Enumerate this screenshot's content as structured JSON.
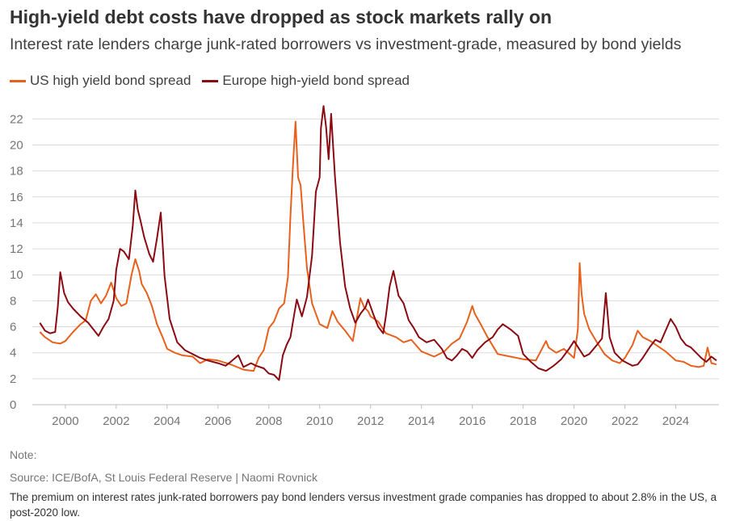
{
  "header": {
    "title": "High-yield debt costs have dropped as stock markets rally on",
    "subtitle": "Interest rate lenders charge junk-rated borrowers vs investment-grade, measured by bond yields"
  },
  "footer": {
    "note": "Note:",
    "source": "Source: ICE/BofA, St Louis Federal Reserve | Naomi Rovnick",
    "caption": "The premium on interest rates junk-rated borrowers pay bond lenders versus investment grade companies has dropped to about 2.8% in the US, a post-2020 low."
  },
  "chart_data": {
    "type": "line",
    "title": "High-yield debt costs have dropped as stock markets rally on",
    "subtitle": "Interest rate lenders charge junk-rated borrowers vs investment-grade, measured by bond yields",
    "xlabel": "",
    "ylabel": "",
    "xlim": [
      1998.7,
      2025.7
    ],
    "ylim": [
      0,
      23.2
    ],
    "x_ticks": [
      2000,
      2002,
      2004,
      2006,
      2008,
      2010,
      2012,
      2014,
      2016,
      2018,
      2020,
      2022,
      2024
    ],
    "y_ticks": [
      0,
      2,
      4,
      6,
      8,
      10,
      12,
      14,
      16,
      18,
      20,
      22
    ],
    "grid": "horizontal",
    "legend": "top-left",
    "series": [
      {
        "name": "US high yield bond spread",
        "color": "#e8601c",
        "x": [
          1999.0,
          1999.2,
          1999.5,
          1999.8,
          2000.0,
          2000.3,
          2000.6,
          2000.8,
          2001.0,
          2001.2,
          2001.4,
          2001.6,
          2001.8,
          2002.0,
          2002.2,
          2002.4,
          2002.6,
          2002.75,
          2002.9,
          2003.0,
          2003.2,
          2003.4,
          2003.6,
          2003.8,
          2004.0,
          2004.3,
          2004.6,
          2005.0,
          2005.3,
          2005.6,
          2006.0,
          2006.5,
          2007.0,
          2007.4,
          2007.6,
          2007.8,
          2008.0,
          2008.2,
          2008.4,
          2008.6,
          2008.75,
          2008.85,
          2008.95,
          2009.05,
          2009.15,
          2009.25,
          2009.35,
          2009.5,
          2009.7,
          2010.0,
          2010.3,
          2010.5,
          2010.7,
          2011.0,
          2011.3,
          2011.6,
          2011.75,
          2011.9,
          2012.0,
          2012.3,
          2012.6,
          2013.0,
          2013.3,
          2013.6,
          2014.0,
          2014.5,
          2014.9,
          2015.2,
          2015.5,
          2015.8,
          2016.0,
          2016.1,
          2016.3,
          2016.6,
          2017.0,
          2017.5,
          2018.0,
          2018.5,
          2018.9,
          2019.0,
          2019.3,
          2019.6,
          2020.0,
          2020.15,
          2020.22,
          2020.3,
          2020.4,
          2020.6,
          2020.9,
          2021.2,
          2021.5,
          2021.8,
          2022.0,
          2022.3,
          2022.5,
          2022.7,
          2023.0,
          2023.3,
          2023.6,
          2024.0,
          2024.3,
          2024.6,
          2024.9,
          2025.1,
          2025.25,
          2025.4,
          2025.6
        ],
        "values": [
          5.6,
          5.2,
          4.8,
          4.7,
          4.9,
          5.6,
          6.2,
          6.5,
          8.0,
          8.5,
          7.8,
          8.4,
          9.4,
          8.2,
          7.6,
          7.8,
          10.0,
          11.2,
          10.3,
          9.3,
          8.6,
          7.6,
          6.2,
          5.3,
          4.3,
          4.0,
          3.8,
          3.7,
          3.2,
          3.5,
          3.4,
          3.1,
          2.7,
          2.6,
          3.6,
          4.2,
          5.9,
          6.4,
          7.4,
          7.8,
          9.8,
          14.5,
          18.5,
          21.8,
          17.5,
          16.9,
          14.2,
          10.5,
          7.8,
          6.2,
          5.9,
          7.2,
          6.4,
          5.7,
          4.9,
          8.2,
          7.5,
          7.2,
          6.8,
          6.4,
          5.5,
          5.2,
          4.8,
          5.0,
          4.1,
          3.7,
          4.1,
          4.7,
          5.1,
          6.4,
          7.6,
          7.0,
          6.3,
          5.2,
          3.9,
          3.7,
          3.5,
          3.4,
          4.9,
          4.4,
          4.0,
          4.3,
          3.6,
          5.8,
          10.9,
          8.5,
          7.0,
          5.8,
          4.8,
          3.9,
          3.4,
          3.2,
          3.6,
          4.6,
          5.7,
          5.2,
          4.9,
          4.5,
          4.1,
          3.4,
          3.3,
          3.0,
          2.9,
          3.0,
          4.4,
          3.2,
          3.1
        ]
      },
      {
        "name": "Europe high-yield bond spread",
        "color": "#8b0a12",
        "x": [
          1999.0,
          1999.2,
          1999.4,
          1999.6,
          1999.7,
          1999.8,
          1999.95,
          2000.1,
          2000.3,
          2000.6,
          2000.9,
          2001.1,
          2001.3,
          2001.5,
          2001.7,
          2001.9,
          2002.0,
          2002.15,
          2002.3,
          2002.5,
          2002.65,
          2002.75,
          2002.85,
          2002.95,
          2003.1,
          2003.3,
          2003.45,
          2003.6,
          2003.75,
          2003.9,
          2004.1,
          2004.4,
          2004.7,
          2005.0,
          2005.3,
          2005.6,
          2006.0,
          2006.3,
          2006.5,
          2006.8,
          2007.0,
          2007.3,
          2007.5,
          2007.8,
          2008.0,
          2008.2,
          2008.4,
          2008.55,
          2008.7,
          2008.85,
          2009.0,
          2009.1,
          2009.3,
          2009.5,
          2009.7,
          2009.85,
          2010.0,
          2010.05,
          2010.15,
          2010.25,
          2010.35,
          2010.45,
          2010.6,
          2010.8,
          2011.0,
          2011.2,
          2011.4,
          2011.6,
          2011.8,
          2011.9,
          2012.1,
          2012.3,
          2012.5,
          2012.6,
          2012.75,
          2012.9,
          2013.1,
          2013.3,
          2013.5,
          2013.7,
          2013.9,
          2014.2,
          2014.5,
          2014.8,
          2015.0,
          2015.2,
          2015.4,
          2015.6,
          2015.8,
          2016.0,
          2016.2,
          2016.5,
          2016.8,
          2017.0,
          2017.2,
          2017.5,
          2017.8,
          2018.0,
          2018.3,
          2018.6,
          2018.9,
          2019.2,
          2019.5,
          2019.8,
          2020.0,
          2020.2,
          2020.4,
          2020.6,
          2020.9,
          2021.1,
          2021.25,
          2021.4,
          2021.6,
          2021.9,
          2022.1,
          2022.3,
          2022.5,
          2022.7,
          2023.0,
          2023.2,
          2023.4,
          2023.6,
          2023.8,
          2024.0,
          2024.2,
          2024.4,
          2024.6,
          2024.8,
          2025.0,
          2025.2,
          2025.4,
          2025.6
        ],
        "values": [
          6.3,
          5.7,
          5.5,
          5.6,
          7.5,
          10.2,
          8.6,
          7.9,
          7.4,
          6.8,
          6.3,
          5.8,
          5.3,
          6.0,
          6.6,
          8.0,
          10.4,
          12.0,
          11.8,
          11.2,
          13.8,
          16.5,
          15.0,
          14.2,
          12.9,
          11.6,
          11.0,
          12.8,
          14.8,
          9.9,
          6.6,
          4.8,
          4.2,
          3.9,
          3.6,
          3.4,
          3.2,
          3.0,
          3.3,
          3.8,
          2.9,
          3.2,
          3.0,
          2.8,
          2.4,
          2.3,
          1.9,
          3.8,
          4.6,
          5.2,
          7.0,
          8.1,
          6.8,
          8.3,
          11.5,
          16.4,
          17.5,
          21.3,
          23.0,
          21.4,
          18.9,
          22.4,
          17.6,
          12.5,
          9.1,
          7.4,
          6.3,
          7.0,
          7.5,
          8.1,
          7.0,
          6.0,
          5.5,
          6.8,
          9.1,
          10.3,
          8.4,
          7.8,
          6.5,
          5.9,
          5.2,
          4.8,
          5.0,
          4.3,
          3.6,
          3.4,
          3.8,
          4.3,
          4.1,
          3.6,
          4.2,
          4.8,
          5.2,
          5.8,
          6.2,
          5.8,
          5.3,
          3.9,
          3.3,
          2.8,
          2.6,
          3.0,
          3.5,
          4.3,
          4.9,
          4.3,
          3.7,
          3.9,
          4.6,
          5.1,
          8.6,
          5.2,
          4.0,
          3.4,
          3.2,
          3.0,
          3.1,
          3.6,
          4.5,
          5.0,
          4.8,
          5.7,
          6.6,
          6.0,
          5.1,
          4.6,
          4.4,
          4.0,
          3.6,
          3.3,
          3.7,
          3.4
        ]
      }
    ]
  }
}
